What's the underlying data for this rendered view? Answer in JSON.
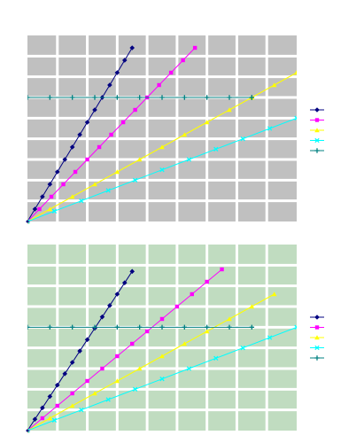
{
  "chart_data": [
    {
      "type": "line",
      "title": "",
      "xlabel": "",
      "ylabel": "",
      "xlim": [
        0,
        9
      ],
      "ylim": [
        0,
        9
      ],
      "grid": true,
      "legend_position": "right",
      "colors": {
        "plot_background": "#c0c0c0",
        "grid": "#ffffff"
      },
      "series": [
        {
          "color": "#000080",
          "marker": "diamond",
          "points": [
            [
              0,
              0
            ],
            [
              0.25,
              0.6
            ],
            [
              0.5,
              1.2
            ],
            [
              0.75,
              1.8
            ],
            [
              1,
              2.4
            ],
            [
              1.25,
              3.0
            ],
            [
              1.5,
              3.6
            ],
            [
              1.75,
              4.2
            ],
            [
              2,
              4.8
            ],
            [
              2.25,
              5.4
            ],
            [
              2.5,
              6.0
            ],
            [
              2.75,
              6.6
            ],
            [
              3,
              7.2
            ],
            [
              3.25,
              7.8
            ],
            [
              3.5,
              8.4
            ]
          ]
        },
        {
          "color": "#ff00ff",
          "marker": "square",
          "points": [
            [
              0,
              0
            ],
            [
              0.4,
              0.6
            ],
            [
              0.8,
              1.2
            ],
            [
              1.2,
              1.8
            ],
            [
              1.6,
              2.4
            ],
            [
              2,
              3.0
            ],
            [
              2.4,
              3.6
            ],
            [
              2.8,
              4.2
            ],
            [
              3.2,
              4.8
            ],
            [
              3.6,
              5.4
            ],
            [
              4,
              6.0
            ],
            [
              4.4,
              6.6
            ],
            [
              4.8,
              7.2
            ],
            [
              5.2,
              7.8
            ],
            [
              5.6,
              8.4
            ]
          ]
        },
        {
          "color": "#ffff00",
          "marker": "triangle",
          "points": [
            [
              0,
              0
            ],
            [
              0.75,
              0.6
            ],
            [
              1.5,
              1.2
            ],
            [
              2.25,
              1.8
            ],
            [
              3,
              2.4
            ],
            [
              3.75,
              3.0
            ],
            [
              4.5,
              3.6
            ],
            [
              5.25,
              4.2
            ],
            [
              6,
              4.8
            ],
            [
              6.75,
              5.4
            ],
            [
              7.5,
              6.0
            ],
            [
              7.5,
              6.0
            ],
            [
              8.25,
              6.6
            ],
            [
              9,
              7.2
            ],
            [
              9,
              7.2
            ]
          ]
        },
        {
          "color": "#00ffff",
          "marker": "x",
          "points": [
            [
              0,
              0
            ],
            [
              0.9,
              0.5
            ],
            [
              1.8,
              1.0
            ],
            [
              2.7,
              1.5
            ],
            [
              3.6,
              2.0
            ],
            [
              4.5,
              2.5
            ],
            [
              5.4,
              3.0
            ],
            [
              6.3,
              3.5
            ],
            [
              7.2,
              4.0
            ],
            [
              8.1,
              4.5
            ],
            [
              9,
              5.0
            ],
            [
              9.9,
              5.5
            ]
          ]
        },
        {
          "color": "#008080",
          "marker": "plus",
          "points": [
            [
              0,
              6
            ],
            [
              0.75,
              6
            ],
            [
              1.5,
              6
            ],
            [
              2.25,
              6
            ],
            [
              3,
              6
            ],
            [
              3.75,
              6
            ],
            [
              4.5,
              6
            ],
            [
              5.25,
              6
            ],
            [
              6,
              6
            ],
            [
              6.75,
              6
            ],
            [
              7.5,
              6
            ],
            [
              7.5,
              6
            ]
          ]
        }
      ]
    },
    {
      "type": "line",
      "title": "",
      "xlabel": "",
      "ylabel": "",
      "xlim": [
        0,
        9
      ],
      "ylim": [
        0,
        9
      ],
      "grid": true,
      "legend_position": "right",
      "colors": {
        "plot_background": "#c0dcc0",
        "grid": "#ffffff"
      },
      "series": [
        {
          "color": "#000080",
          "marker": "diamond",
          "points": [
            [
              0,
              0
            ],
            [
              0.25,
              0.55
            ],
            [
              0.5,
              1.1
            ],
            [
              0.75,
              1.65
            ],
            [
              1,
              2.2
            ],
            [
              1.25,
              2.75
            ],
            [
              1.5,
              3.3
            ],
            [
              1.75,
              3.85
            ],
            [
              2,
              4.4
            ],
            [
              2.25,
              4.95
            ],
            [
              2.5,
              5.5
            ],
            [
              2.75,
              6.05
            ],
            [
              3,
              6.6
            ],
            [
              3.25,
              7.15
            ],
            [
              3.5,
              7.7
            ]
          ]
        },
        {
          "color": "#ff00ff",
          "marker": "square",
          "points": [
            [
              0,
              0
            ],
            [
              0.5,
              0.6
            ],
            [
              1,
              1.2
            ],
            [
              1.5,
              1.8
            ],
            [
              2,
              2.4
            ],
            [
              2.5,
              3.0
            ],
            [
              3,
              3.6
            ],
            [
              3.5,
              4.2
            ],
            [
              4,
              4.8
            ],
            [
              4.5,
              5.4
            ],
            [
              5,
              6.0
            ],
            [
              5.5,
              6.6
            ],
            [
              6,
              7.2
            ],
            [
              6.5,
              7.8
            ]
          ]
        },
        {
          "color": "#ffff00",
          "marker": "triangle",
          "points": [
            [
              0,
              0
            ],
            [
              0.75,
              0.6
            ],
            [
              1.5,
              1.2
            ],
            [
              2.25,
              1.8
            ],
            [
              3,
              2.4
            ],
            [
              3.75,
              3.0
            ],
            [
              4.5,
              3.6
            ],
            [
              5.25,
              4.2
            ],
            [
              6,
              4.8
            ],
            [
              6.75,
              5.4
            ],
            [
              7.5,
              6.0
            ],
            [
              8.25,
              6.6
            ]
          ]
        },
        {
          "color": "#00ffff",
          "marker": "x",
          "points": [
            [
              0,
              0
            ],
            [
              0.9,
              0.5
            ],
            [
              1.8,
              1.0
            ],
            [
              2.7,
              1.5
            ],
            [
              3.6,
              2.0
            ],
            [
              4.5,
              2.5
            ],
            [
              5.4,
              3.0
            ],
            [
              6.3,
              3.5
            ],
            [
              7.2,
              4.0
            ],
            [
              8.1,
              4.5
            ],
            [
              9,
              5.0
            ],
            [
              9.9,
              5.5
            ]
          ]
        },
        {
          "color": "#008080",
          "marker": "plus",
          "points": [
            [
              0,
              5
            ],
            [
              0.75,
              5
            ],
            [
              1.5,
              5
            ],
            [
              2.25,
              5
            ],
            [
              3,
              5
            ],
            [
              3.75,
              5
            ],
            [
              4.5,
              5
            ],
            [
              5.25,
              5
            ],
            [
              6,
              5
            ],
            [
              6.75,
              5
            ],
            [
              7.5,
              5
            ]
          ]
        }
      ]
    }
  ]
}
